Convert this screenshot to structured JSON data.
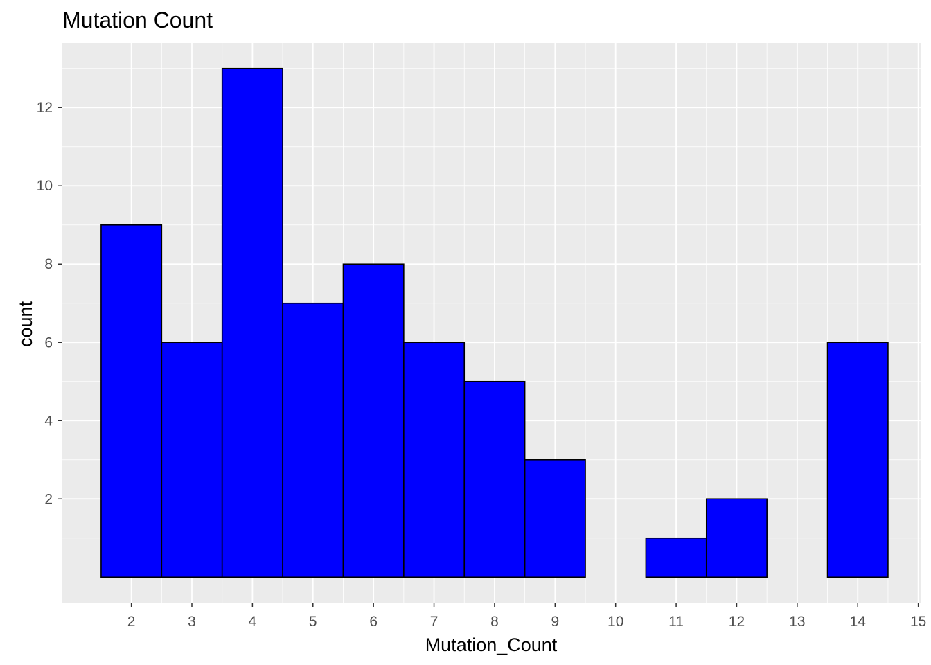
{
  "chart_data": {
    "type": "bar",
    "title": "Mutation Count",
    "xlabel": "Mutation_Count",
    "ylabel": "count",
    "bins": [
      {
        "x": 2,
        "count": 9
      },
      {
        "x": 3,
        "count": 6
      },
      {
        "x": 4,
        "count": 13
      },
      {
        "x": 5,
        "count": 7
      },
      {
        "x": 6,
        "count": 8
      },
      {
        "x": 7,
        "count": 6
      },
      {
        "x": 8,
        "count": 5
      },
      {
        "x": 9,
        "count": 3
      },
      {
        "x": 10,
        "count": 0
      },
      {
        "x": 11,
        "count": 1
      },
      {
        "x": 12,
        "count": 2
      },
      {
        "x": 13,
        "count": 0
      },
      {
        "x": 14,
        "count": 6
      }
    ],
    "bin_width": 1,
    "x_ticks": [
      "2",
      "3",
      "4",
      "5",
      "6",
      "7",
      "8",
      "9",
      "10",
      "11",
      "12",
      "13",
      "14",
      "15"
    ],
    "y_ticks": [
      "2",
      "4",
      "6",
      "8",
      "10",
      "12"
    ],
    "xlim": [
      0.86,
      15.05
    ],
    "ylim": [
      -0.65,
      13.65
    ],
    "grid": true,
    "colors": {
      "bar_fill": "#0000ff",
      "bar_outline": "#000000",
      "panel_background": "#ebebeb",
      "grid": "#ffffff"
    }
  }
}
